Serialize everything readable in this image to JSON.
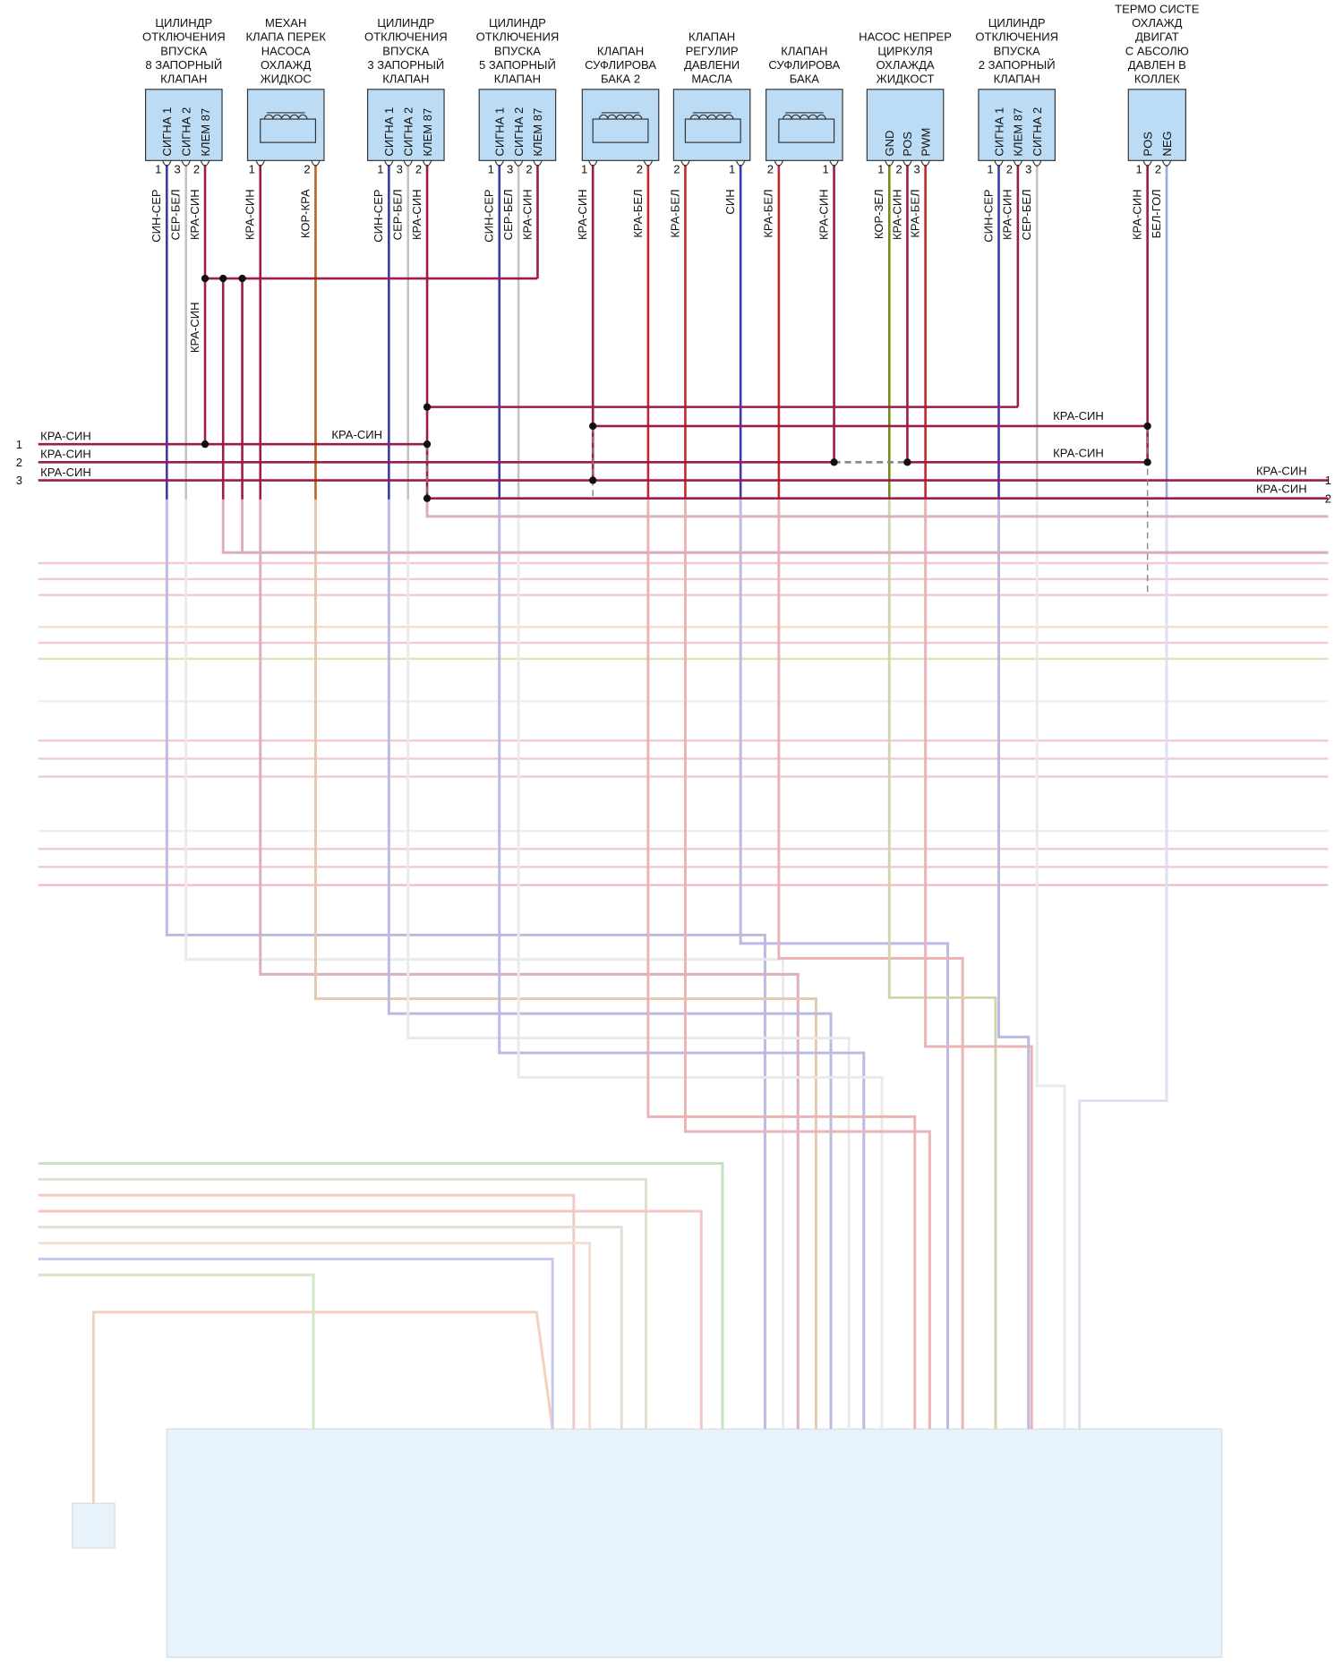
{
  "components": [
    {
      "title": [
        "ЦИЛИНДР",
        "ОТКЛЮЧЕНИЯ",
        "ВПУСКА",
        "8 ЗАПОРНЫЙ",
        "КЛАПАН"
      ],
      "pins": [
        {
          "name": "СИГНА 1",
          "num": 1,
          "wire": "СИН-СЕР",
          "color": "#3b3bb0"
        },
        {
          "name": "СИГНА 2",
          "num": 3,
          "wire": "СЕР-БЕЛ",
          "color": "#c4c4c4"
        },
        {
          "name": "КЛЕМ 87",
          "num": 2,
          "wire": "КРА-СИН",
          "color": "#9c1c4c"
        }
      ]
    },
    {
      "title": [
        "МЕХАН",
        "КЛАПА ПЕРЕК",
        "НАСОСА",
        "ОХЛАЖД",
        "ЖИДКОС"
      ],
      "pins": [
        {
          "num": 1,
          "wire": "КРА-СИН",
          "color": "#9c1c4c"
        },
        {
          "num": 2,
          "wire": "КОР-КРА",
          "color": "#b5651d"
        }
      ]
    },
    {
      "title": [
        "ЦИЛИНДР",
        "ОТКЛЮЧЕНИЯ",
        "ВПУСКА",
        "3 ЗАПОРНЫЙ",
        "КЛАПАН"
      ],
      "pins": [
        {
          "name": "СИГНА 1",
          "num": 1,
          "wire": "СИН-СЕР",
          "color": "#3b3bb0"
        },
        {
          "name": "СИГНА 2",
          "num": 3,
          "wire": "СЕР-БЕЛ",
          "color": "#c4c4c4"
        },
        {
          "name": "КЛЕМ 87",
          "num": 2,
          "wire": "КРА-СИН",
          "color": "#9c1c4c"
        }
      ]
    },
    {
      "title": [
        "ЦИЛИНДР",
        "ОТКЛЮЧЕНИЯ",
        "ВПУСКА",
        "5 ЗАПОРНЫЙ",
        "КЛАПАН"
      ],
      "pins": [
        {
          "name": "СИГНА 1",
          "num": 1,
          "wire": "СИН-СЕР",
          "color": "#3b3bb0"
        },
        {
          "name": "СИГНА 2",
          "num": 3,
          "wire": "СЕР-БЕЛ",
          "color": "#c4c4c4"
        },
        {
          "name": "КЛЕМ 87",
          "num": 2,
          "wire": "КРА-СИН",
          "color": "#9c1c4c"
        }
      ]
    },
    {
      "title": [
        "КЛАПАН",
        "СУФЛИРОВА",
        "БАКА 2"
      ],
      "pins": [
        {
          "num": 1,
          "wire": "КРА-СИН",
          "color": "#9c1c4c"
        },
        {
          "num": 2,
          "wire": "КРА-БЕЛ",
          "color": "#c8282c"
        }
      ]
    },
    {
      "title": [
        "КЛАПАН",
        "РЕГУЛИР",
        "ДАВЛЕНИ",
        "МАСЛА"
      ],
      "pins": [
        {
          "num": 2,
          "wire": "КРА-БЕЛ",
          "color": "#c8282c"
        },
        {
          "num": 1,
          "wire": "СИН",
          "color": "#3b3bb0"
        }
      ]
    },
    {
      "title": [
        "КЛАПАН",
        "СУФЛИРОВА",
        "БАКА"
      ],
      "pins": [
        {
          "num": 2,
          "wire": "КРА-БЕЛ",
          "color": "#c8282c"
        },
        {
          "num": 1,
          "wire": "КРА-СИН",
          "color": "#9c1c4c"
        }
      ]
    },
    {
      "title": [
        "НАСОС НЕПРЕР",
        "ЦИРКУЛЯ",
        "ОХЛАЖДА",
        "ЖИДКОСТ"
      ],
      "pins": [
        {
          "name": "GND",
          "num": 1,
          "wire": "КОР-ЗЕЛ",
          "color": "#7a8a1a"
        },
        {
          "name": "POS",
          "num": 2,
          "wire": "КРА-СИН",
          "color": "#9c1c4c"
        },
        {
          "name": "PWM",
          "num": 3,
          "wire": "КРА-БЕЛ",
          "color": "#c8282c"
        }
      ]
    },
    {
      "title": [
        "ЦИЛИНДР",
        "ОТКЛЮЧЕНИЯ",
        "ВПУСКА",
        "2 ЗАПОРНЫЙ",
        "КЛАПАН"
      ],
      "pins": [
        {
          "name": "СИГНА 1",
          "num": 1,
          "wire": "СИН-СЕР",
          "color": "#3b3bb0"
        },
        {
          "name": "КЛЕМ 87",
          "num": 2,
          "wire": "КРА-СИН",
          "color": "#9c1c4c"
        },
        {
          "name": "СИГНА 2",
          "num": 3,
          "wire": "СЕР-БЕЛ",
          "color": "#c4c4c4"
        }
      ]
    },
    {
      "title": [
        "ТЕРМО СИСТЕ",
        "ОХЛАЖД",
        "ДВИГАТ",
        "С АБСОЛЮ",
        "ДАВЛЕН В",
        "КОЛЛЕК"
      ],
      "pins": [
        {
          "name": "POS",
          "num": 1,
          "wire": "КРА-СИН",
          "color": "#9c1c4c"
        },
        {
          "name": "NEG",
          "num": 2,
          "wire": "БЕЛ-ГОЛ",
          "color": "#9aa8d8"
        }
      ]
    }
  ],
  "left_connections": [
    {
      "num": 1,
      "wire": "КРА-СИН"
    },
    {
      "num": 2,
      "wire": "КРА-СИН"
    },
    {
      "num": 3,
      "wire": "КРА-СИН"
    }
  ],
  "right_connections": [
    {
      "num": 1,
      "wire": "КРА-СИН"
    },
    {
      "num": 2,
      "wire": "КРА-СИН"
    }
  ],
  "wire_labels": [
    "КРА-СИН",
    "КРА-СИН",
    "КРА-СИН",
    "КРА-СИН"
  ]
}
